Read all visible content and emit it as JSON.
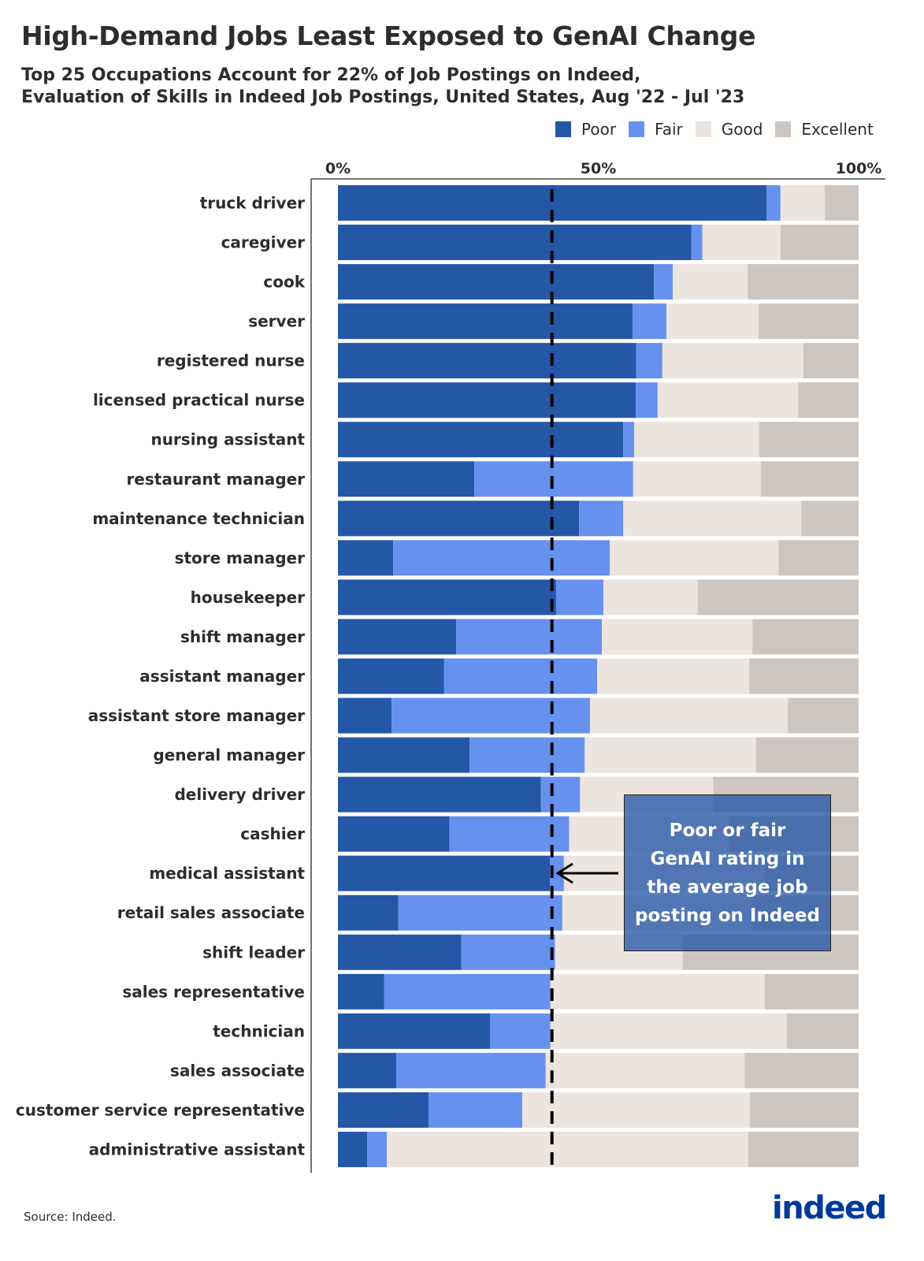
{
  "title": "High-Demand Jobs Least Exposed to GenAI Change",
  "subtitle_line1": "Top 25 Occupations Account for 22% of Job Postings on Indeed,",
  "subtitle_line2": "Evaluation of Skills in Indeed Job Postings, United States, Aug '22 - Jul '23",
  "source": "Source: Indeed.",
  "logo_text": "indeed",
  "annotation": "Poor or fair\nGenAI rating in\nthe average job\nposting on Indeed",
  "colors": {
    "Poor": "#2557a7",
    "Fair": "#6791ee",
    "Good": "#ece4df",
    "Excellent": "#cdc5c0",
    "annotation_box": "#2557a7"
  },
  "chart_data": {
    "type": "bar",
    "orientation": "horizontal",
    "stacked": true,
    "legend_placement": "top-right",
    "xlim": [
      0,
      100
    ],
    "x_tick_labels": [
      "0%",
      "50%",
      "100%"
    ],
    "x_ticks": [
      0,
      50,
      100
    ],
    "reference_line": {
      "value": 41.1,
      "style": "dashed"
    },
    "categories": [
      "truck driver",
      "caregiver",
      "cook",
      "server",
      "registered nurse",
      "licensed practical nurse",
      "nursing assistant",
      "restaurant manager",
      "maintenance technician",
      "store manager",
      "housekeeper",
      "shift manager",
      "assistant manager",
      "assistant store manager",
      "general manager",
      "delivery driver",
      "cashier",
      "medical assistant",
      "retail sales associate",
      "shift leader",
      "sales representative",
      "technician",
      "sales associate",
      "customer service representative",
      "administrative assistant"
    ],
    "series": [
      {
        "name": "Poor",
        "values": [
          82.3,
          67.9,
          60.7,
          56.6,
          57.3,
          57.2,
          54.8,
          26.2,
          46.3,
          10.6,
          41.9,
          22.7,
          20.4,
          10.3,
          25.3,
          39.0,
          21.4,
          40.7,
          11.6,
          23.7,
          8.9,
          29.2,
          11.2,
          17.4,
          5.6
        ]
      },
      {
        "name": "Fair",
        "values": [
          2.7,
          2.1,
          3.6,
          6.5,
          5.0,
          4.2,
          2.1,
          30.5,
          8.5,
          41.6,
          9.1,
          28.0,
          29.4,
          38.1,
          22.1,
          7.5,
          23.0,
          2.7,
          31.5,
          18.0,
          31.9,
          11.6,
          28.7,
          18.0,
          3.8
        ]
      },
      {
        "name": "Good",
        "values": [
          8.5,
          15.0,
          14.4,
          17.7,
          27.1,
          27.0,
          24.0,
          24.5,
          34.2,
          32.4,
          18.1,
          28.9,
          29.2,
          38.0,
          32.9,
          25.6,
          30.7,
          38.5,
          36.4,
          24.5,
          41.2,
          45.4,
          38.2,
          43.7,
          69.4
        ]
      },
      {
        "name": "Excellent",
        "values": [
          6.5,
          15.0,
          21.3,
          19.2,
          10.6,
          11.6,
          19.1,
          18.8,
          11.0,
          15.4,
          30.9,
          20.4,
          21.0,
          13.6,
          19.7,
          27.9,
          24.9,
          18.1,
          20.5,
          33.8,
          18.0,
          13.8,
          21.9,
          20.9,
          21.2
        ]
      }
    ]
  }
}
